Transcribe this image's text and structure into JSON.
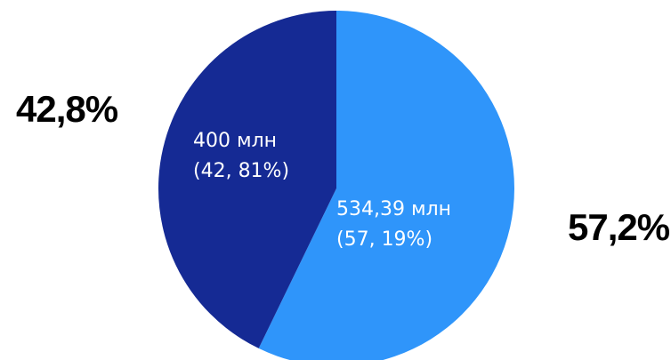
{
  "chart_data": {
    "type": "pie",
    "start_angle_deg": 0,
    "direction": "clockwise",
    "slices": [
      {
        "value": 534.39,
        "value_label": "534,39 млн",
        "percent_label": "(57, 19%)",
        "outer_label": "57,2%",
        "color": "#2f95fa"
      },
      {
        "value": 400,
        "value_label": "400 млн",
        "percent_label": "(42, 81%)",
        "outer_label": "42,8%",
        "color": "#152a94"
      }
    ]
  }
}
